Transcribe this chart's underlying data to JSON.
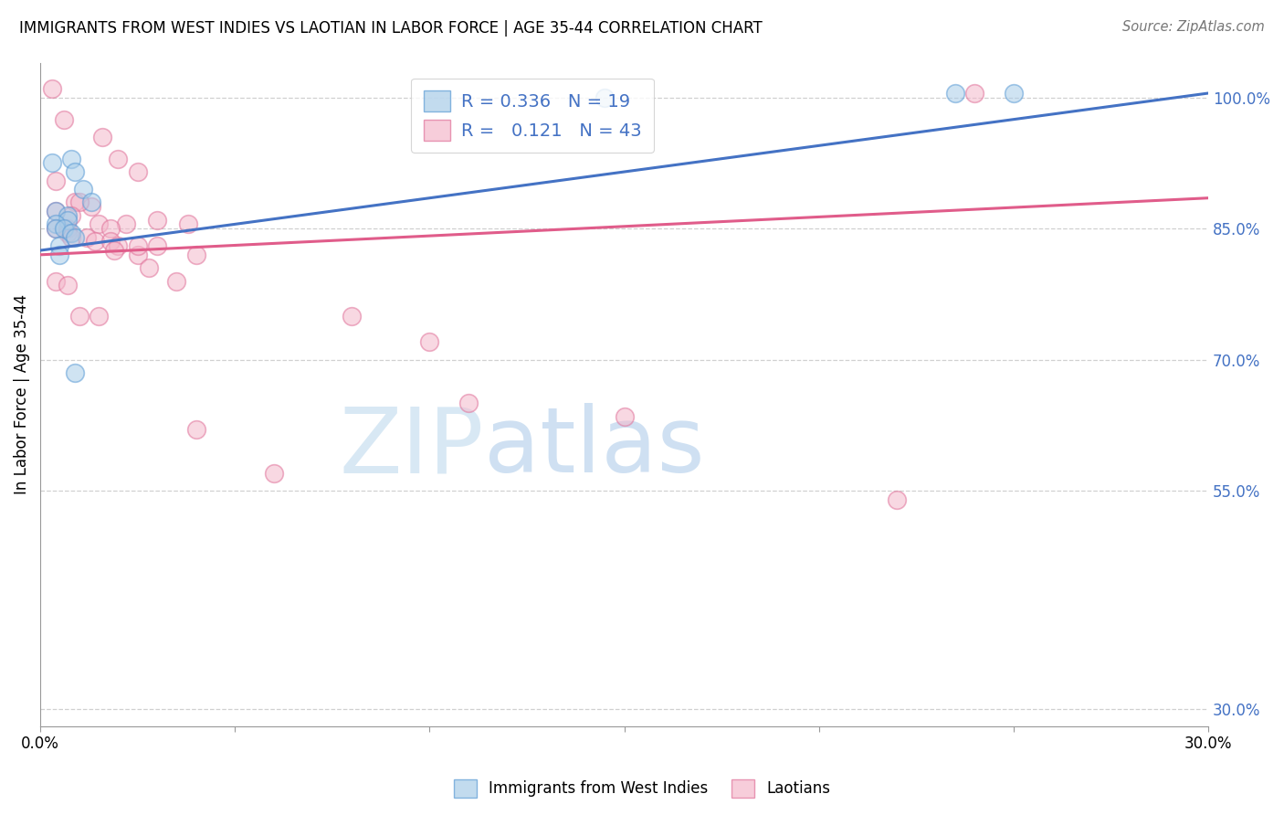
{
  "title": "IMMIGRANTS FROM WEST INDIES VS LAOTIAN IN LABOR FORCE | AGE 35-44 CORRELATION CHART",
  "source": "Source: ZipAtlas.com",
  "ylabel": "In Labor Force | Age 35-44",
  "yticks": [
    30.0,
    55.0,
    70.0,
    85.0,
    100.0
  ],
  "xlim": [
    0.0,
    0.3
  ],
  "ylim": [
    28.0,
    104.0
  ],
  "legend_r_blue": "0.336",
  "legend_n_blue": "19",
  "legend_r_pink": "0.121",
  "legend_n_pink": "43",
  "blue_fill_color": "#a8cce8",
  "blue_edge_color": "#5b9bd5",
  "pink_fill_color": "#f4b8cb",
  "pink_edge_color": "#e0729a",
  "blue_line_color": "#4472c4",
  "pink_line_color": "#e05c8a",
  "right_tick_color": "#4472c4",
  "grid_color": "#d0d0d0",
  "blue_scatter_x": [
    0.003,
    0.008,
    0.009,
    0.011,
    0.013,
    0.004,
    0.007,
    0.007,
    0.004,
    0.004,
    0.006,
    0.008,
    0.009,
    0.005,
    0.005,
    0.009,
    0.145,
    0.235,
    0.25
  ],
  "blue_scatter_y": [
    92.5,
    93.0,
    91.5,
    89.5,
    88.0,
    87.0,
    86.5,
    86.0,
    85.5,
    85.0,
    85.0,
    84.5,
    84.0,
    83.0,
    82.0,
    68.5,
    100.0,
    100.5,
    100.5
  ],
  "pink_scatter_x": [
    0.003,
    0.016,
    0.02,
    0.025,
    0.004,
    0.009,
    0.013,
    0.015,
    0.022,
    0.018,
    0.004,
    0.007,
    0.007,
    0.008,
    0.012,
    0.014,
    0.018,
    0.02,
    0.019,
    0.025,
    0.028,
    0.025,
    0.03,
    0.035,
    0.04,
    0.004,
    0.007,
    0.01,
    0.015,
    0.08,
    0.1,
    0.11,
    0.15,
    0.04,
    0.06,
    0.22,
    0.24,
    0.01,
    0.004,
    0.008,
    0.03,
    0.038,
    0.006
  ],
  "pink_scatter_y": [
    101.0,
    95.5,
    93.0,
    91.5,
    90.5,
    88.0,
    87.5,
    85.5,
    85.5,
    85.0,
    85.0,
    85.0,
    84.5,
    84.0,
    84.0,
    83.5,
    83.5,
    83.0,
    82.5,
    82.0,
    80.5,
    83.0,
    83.0,
    79.0,
    82.0,
    79.0,
    78.5,
    75.0,
    75.0,
    75.0,
    72.0,
    65.0,
    63.5,
    62.0,
    57.0,
    54.0,
    100.5,
    88.0,
    87.0,
    86.5,
    86.0,
    85.5,
    97.5
  ],
  "blue_line_x0": 0.0,
  "blue_line_y0": 82.5,
  "blue_line_x1": 0.3,
  "blue_line_y1": 100.5,
  "pink_line_x0": 0.0,
  "pink_line_y0": 82.0,
  "pink_line_x1": 0.3,
  "pink_line_y1": 88.5
}
